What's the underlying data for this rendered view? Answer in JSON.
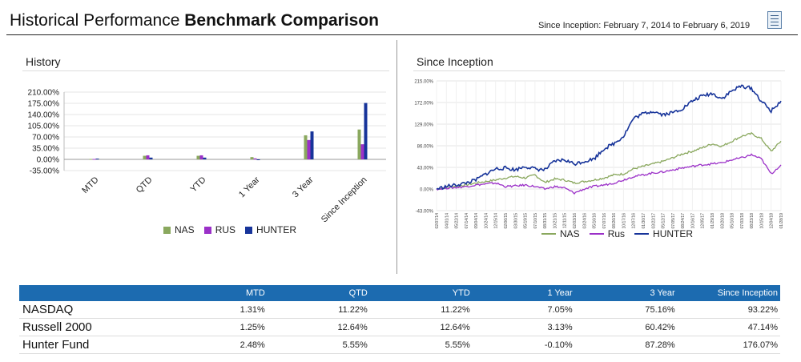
{
  "header": {
    "title_normal": "Historical Performance ",
    "title_bold": "Benchmark Comparison",
    "date_range": "Since Inception: February 7, 2014 to February 6, 2019",
    "report_icon": "report-icon"
  },
  "history_panel": {
    "title": "History",
    "legend": [
      {
        "label": "NAS",
        "color": "#8aa85e"
      },
      {
        "label": "RUS",
        "color": "#9b30c8"
      },
      {
        "label": "HUNTER",
        "color": "#17349a"
      }
    ]
  },
  "inception_panel": {
    "title": "Since Inception",
    "legend": [
      {
        "label": "NAS",
        "color": "#8aa85e"
      },
      {
        "label": "Rus",
        "color": "#9b30c8"
      },
      {
        "label": "HUNTER",
        "color": "#17349a"
      }
    ]
  },
  "chart_data": [
    {
      "type": "bar",
      "title": "History",
      "categories": [
        "MTD",
        "QTD",
        "YTD",
        "1 Year",
        "3 Year",
        "Since Inception"
      ],
      "series": [
        {
          "name": "NAS",
          "color": "#8aa85e",
          "values": [
            1.31,
            11.22,
            11.22,
            7.05,
            75.16,
            93.22
          ]
        },
        {
          "name": "RUS",
          "color": "#9b30c8",
          "values": [
            1.25,
            12.64,
            12.64,
            3.13,
            60.42,
            47.14
          ]
        },
        {
          "name": "HUNTER",
          "color": "#17349a",
          "values": [
            2.48,
            5.55,
            5.55,
            -0.1,
            87.28,
            176.07
          ]
        }
      ],
      "yticks": [
        "210.00%",
        "175.00%",
        "140.00%",
        "105.00%",
        "70.00%",
        "35.00%",
        "0.00%",
        "-35.00%"
      ],
      "ylim": [
        -35,
        210
      ],
      "grid": true,
      "legend_position": "bottom"
    },
    {
      "type": "line",
      "title": "Since Inception",
      "yticks": [
        "215.00%",
        "172.00%",
        "129.00%",
        "86.00%",
        "43.00%",
        "0.00%",
        "-43.00%"
      ],
      "ylim": [
        -43,
        215
      ],
      "x_ticks": [
        "02/07/14",
        "04/01/14",
        "05/22/14",
        "07/14/14",
        "09/04/14",
        "10/24/14",
        "12/15/14",
        "02/06/15",
        "03/30/15",
        "05/19/15",
        "07/10/15",
        "08/31/15",
        "10/21/15",
        "12/11/15",
        "02/03/16",
        "03/24/16",
        "05/16/16",
        "07/07/16",
        "08/26/16",
        "10/17/16",
        "12/07/16",
        "01/30/17",
        "03/22/17",
        "05/12/17",
        "07/05/17",
        "08/24/17",
        "10/16/17",
        "12/05/17",
        "01/29/18",
        "03/20/18",
        "05/10/18",
        "07/03/18",
        "08/23/18",
        "10/15/18",
        "12/04/18",
        "01/28/19"
      ],
      "x_label_points": [
        "02/07/14",
        "01/28/19"
      ],
      "series": [
        {
          "name": "NAS",
          "color": "#8aa85e",
          "values": [
            0,
            3,
            6,
            8,
            12,
            15,
            18,
            22,
            25,
            22,
            28,
            13,
            20,
            18,
            12,
            15,
            18,
            22,
            28,
            30,
            40,
            45,
            50,
            55,
            62,
            70,
            75,
            82,
            90,
            85,
            95,
            105,
            110,
            100,
            75,
            95
          ]
        },
        {
          "name": "Rus",
          "color": "#9b30c8",
          "values": [
            0,
            2,
            3,
            5,
            8,
            10,
            12,
            5,
            6,
            8,
            5,
            0,
            5,
            2,
            -8,
            0,
            5,
            8,
            12,
            18,
            25,
            28,
            32,
            34,
            38,
            42,
            45,
            48,
            50,
            52,
            58,
            62,
            68,
            60,
            30,
            48
          ]
        },
        {
          "name": "HUNTER",
          "color": "#17349a",
          "values": [
            0,
            5,
            8,
            12,
            18,
            30,
            40,
            42,
            38,
            45,
            40,
            38,
            55,
            58,
            50,
            55,
            60,
            80,
            90,
            105,
            140,
            150,
            155,
            148,
            152,
            160,
            175,
            185,
            190,
            180,
            195,
            205,
            200,
            175,
            155,
            175
          ]
        }
      ],
      "grid": true,
      "legend_position": "bottom"
    }
  ],
  "table": {
    "columns": [
      "",
      "MTD",
      "QTD",
      "YTD",
      "1 Year",
      "3 Year",
      "Since Inception"
    ],
    "rows": [
      {
        "name": "NASDAQ",
        "values": [
          "1.31%",
          "11.22%",
          "11.22%",
          "7.05%",
          "75.16%",
          "93.22%"
        ]
      },
      {
        "name": "Russell 2000",
        "values": [
          "1.25%",
          "12.64%",
          "12.64%",
          "3.13%",
          "60.42%",
          "47.14%"
        ]
      },
      {
        "name": "Hunter Fund",
        "values": [
          "2.48%",
          "5.55%",
          "5.55%",
          "-0.10%",
          "87.28%",
          "176.07%"
        ]
      }
    ]
  }
}
